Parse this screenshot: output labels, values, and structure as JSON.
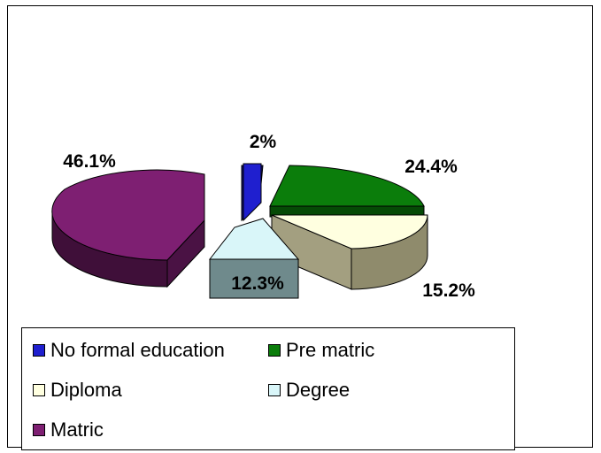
{
  "chart_data": {
    "type": "pie",
    "title": "",
    "labels": [
      "No formal education",
      "Pre matric",
      "Diploma",
      "Degree",
      "Matric"
    ],
    "values": [
      2,
      24.4,
      15.2,
      12.3,
      46.1
    ],
    "data_labels": [
      "2%",
      "24.4%",
      "15.2%",
      "12.3%",
      "46.1%"
    ],
    "colors": [
      "#1f1fcf",
      "#0b7d0b",
      "#ffffe0",
      "#d9f6f9",
      "#7e1f72"
    ],
    "style": "3d-exploded",
    "legend_position": "bottom"
  }
}
